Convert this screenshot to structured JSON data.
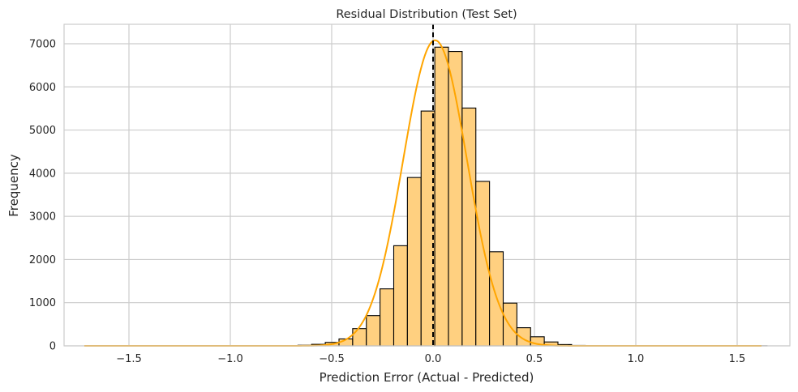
{
  "chart_data": {
    "type": "bar",
    "title": "Residual Distribution (Test Set)",
    "xlabel": "Prediction Error (Actual - Predicted)",
    "ylabel": "Frequency",
    "xlim": [
      -1.82,
      1.76
    ],
    "ylim": [
      0,
      7450
    ],
    "xticks": [
      -1.5,
      -1.0,
      -0.5,
      0.0,
      0.5,
      1.0,
      1.5
    ],
    "xtick_labels": [
      "−1.5",
      "−1.0",
      "−0.5",
      "0.0",
      "0.5",
      "1.0",
      "1.5"
    ],
    "yticks": [
      0,
      1000,
      2000,
      3000,
      4000,
      5000,
      6000,
      7000
    ],
    "ytick_labels": [
      "0",
      "1000",
      "2000",
      "3000",
      "4000",
      "5000",
      "6000",
      "7000"
    ],
    "grid": true,
    "bin_width": 0.0675,
    "bins": [
      {
        "x0": -1.7,
        "count": 1
      },
      {
        "x0": -0.8015,
        "count": 5
      },
      {
        "x0": -0.734,
        "count": 8
      },
      {
        "x0": -0.6665,
        "count": 14
      },
      {
        "x0": -0.599,
        "count": 35
      },
      {
        "x0": -0.5315,
        "count": 80
      },
      {
        "x0": -0.464,
        "count": 160
      },
      {
        "x0": -0.3965,
        "count": 400
      },
      {
        "x0": -0.329,
        "count": 700
      },
      {
        "x0": -0.2615,
        "count": 1320
      },
      {
        "x0": -0.194,
        "count": 2320
      },
      {
        "x0": -0.1265,
        "count": 3900
      },
      {
        "x0": -0.059,
        "count": 5440
      },
      {
        "x0": 0.0085,
        "count": 6920
      },
      {
        "x0": 0.076,
        "count": 6820
      },
      {
        "x0": 0.1435,
        "count": 5510
      },
      {
        "x0": 0.211,
        "count": 3810
      },
      {
        "x0": 0.2785,
        "count": 2180
      },
      {
        "x0": 0.346,
        "count": 990
      },
      {
        "x0": 0.4135,
        "count": 420
      },
      {
        "x0": 0.481,
        "count": 210
      },
      {
        "x0": 0.5485,
        "count": 90
      },
      {
        "x0": 0.616,
        "count": 30
      },
      {
        "x0": 0.6835,
        "count": 10
      },
      {
        "x0": 1.58,
        "count": 1
      }
    ],
    "kde": {
      "mean": 0.01,
      "sd": 0.158,
      "peak": 7080,
      "color": "#ffa500"
    },
    "reference_line": {
      "x": 0.0,
      "color": "#000000",
      "style": "dashed"
    },
    "colors": {
      "bar_fill": "#ffd080",
      "bar_edge": "#000000",
      "grid": "#cccccc",
      "spine": "#cccccc"
    }
  }
}
